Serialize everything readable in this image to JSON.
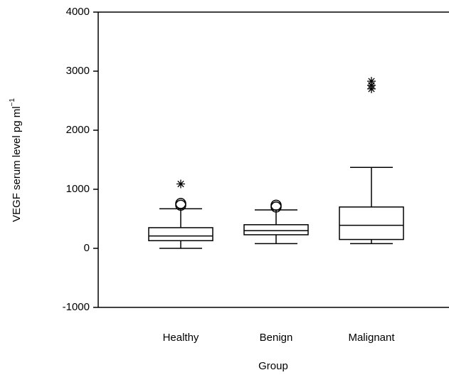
{
  "chart_data": {
    "type": "box",
    "x_label": "Group",
    "y_label": "VEGF serum level pg ml",
    "y_label_superscript": "−1",
    "categories": [
      "Healthy",
      "Benign",
      "Malignant"
    ],
    "whisker_low": [
      0,
      80,
      80
    ],
    "q1": [
      130,
      230,
      150
    ],
    "median": [
      210,
      300,
      390
    ],
    "q3": [
      350,
      400,
      700
    ],
    "whisker_high": [
      670,
      650,
      1370
    ],
    "outliers": [
      [
        730,
        760
      ],
      [
        700,
        730
      ],
      []
    ],
    "extremes": [
      [
        1090
      ],
      [],
      [
        2700,
        2760,
        2830
      ]
    ],
    "color": "#000000",
    "ylim": [
      -1000,
      4000
    ],
    "yticks": [
      -1000,
      0,
      1000,
      2000,
      3000,
      4000
    ]
  }
}
